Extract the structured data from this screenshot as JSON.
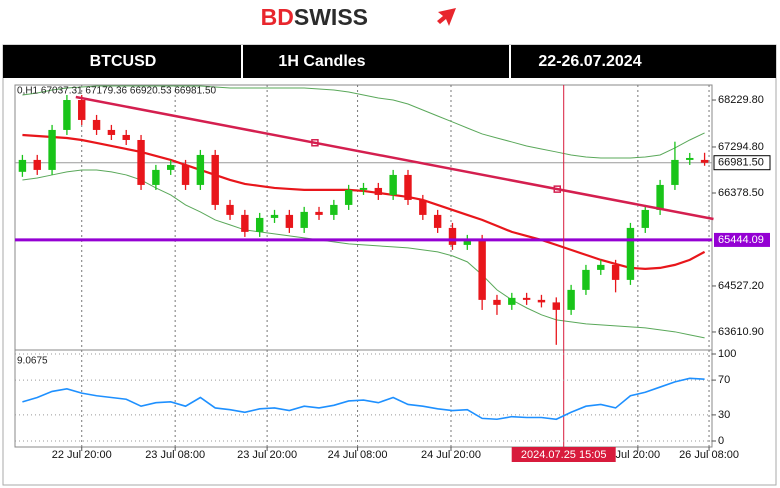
{
  "logo": {
    "bd": "BD",
    "swiss": "SWISS"
  },
  "header": [
    "BTCUSD",
    "1H Candles",
    "22-26.07.2024"
  ],
  "chart_data": [
    {
      "type": "candlestick",
      "info": "0,H1  67037.31  67179.36  66920.53  66981.50",
      "open": [
        66800,
        67037,
        66838,
        67634,
        68230,
        67833,
        67634,
        67534,
        67434,
        66539,
        66838,
        66937,
        66539,
        67136,
        66141,
        65942,
        65604,
        65882,
        65942,
        65683,
        66002,
        65942,
        66141,
        66440,
        66479,
        66340,
        66738,
        66240,
        65942,
        65683,
        65345,
        65444,
        64250,
        64151,
        64290,
        64250,
        64200,
        64051,
        64449,
        64847,
        64947,
        64648,
        65683,
        66041,
        66539,
        67037,
        67037.31
      ],
      "high": [
        67137,
        67137,
        67734,
        68330,
        68330,
        67933,
        67734,
        67634,
        67534,
        66938,
        67037,
        67037,
        67236,
        67236,
        66241,
        66042,
        65982,
        66042,
        66042,
        66102,
        66102,
        66241,
        66540,
        66579,
        66579,
        66838,
        66838,
        66340,
        66042,
        65783,
        65544,
        65544,
        64350,
        64390,
        64390,
        64350,
        64300,
        64549,
        64947,
        65047,
        65047,
        65783,
        66141,
        66639,
        67400,
        67176,
        67179.36
      ],
      "low": [
        66700,
        66738,
        66738,
        67534,
        67733,
        67534,
        67434,
        67334,
        66439,
        66439,
        66738,
        66439,
        66439,
        66041,
        65842,
        65504,
        65504,
        65782,
        65583,
        65583,
        65842,
        65842,
        66041,
        66340,
        66240,
        66240,
        66140,
        65842,
        65583,
        65245,
        65245,
        64050,
        63951,
        64051,
        64150,
        64100,
        63355,
        63951,
        64349,
        64747,
        64400,
        64548,
        65583,
        65941,
        66439,
        66937,
        66920.53
      ],
      "close": [
        67037,
        66838,
        67634,
        68230,
        67833,
        67634,
        67534,
        67434,
        66539,
        66838,
        66937,
        66539,
        67136,
        66141,
        65942,
        65604,
        65882,
        65942,
        65683,
        66002,
        65942,
        66141,
        66440,
        66479,
        66340,
        66738,
        66240,
        65942,
        65683,
        65345,
        65444,
        64250,
        64151,
        64290,
        64250,
        64200,
        64051,
        64449,
        64847,
        64947,
        64648,
        65683,
        66041,
        66539,
        67037,
        67076,
        66981.5
      ],
      "up_color": "#19c419",
      "down_color": "#e8161b",
      "ma": {
        "color": "#e8161b",
        "values": [
          67534,
          67514,
          67494,
          67474,
          67434,
          67375,
          67315,
          67255,
          67196,
          67116,
          67037,
          66937,
          66838,
          66738,
          66639,
          66559,
          66519,
          66479,
          66459,
          66440,
          66440,
          66440,
          66440,
          66420,
          66380,
          66340,
          66300,
          66240,
          66141,
          66041,
          65942,
          65843,
          65723,
          65604,
          65524,
          65444,
          65345,
          65246,
          65146,
          65047,
          64967,
          64887,
          64867,
          64887,
          64947,
          65047,
          65206
        ]
      },
      "bands": {
        "color": "#5aa85a",
        "upper": [
          68330,
          68370,
          68429,
          68469,
          68489,
          68509,
          68509,
          68509,
          68509,
          68509,
          68509,
          68509,
          68509,
          68489,
          68469,
          68469,
          68469,
          68469,
          68469,
          68469,
          68449,
          68429,
          68390,
          68330,
          68270,
          68230,
          68151,
          68031,
          67912,
          67793,
          67673,
          67554,
          67474,
          67395,
          67315,
          67255,
          67196,
          67136,
          67096,
          67076,
          67076,
          67076,
          67096,
          67136,
          67275,
          67434,
          67574
        ],
        "lower": [
          66638,
          66678,
          66738,
          66798,
          66837,
          66837,
          66798,
          66738,
          66638,
          66479,
          66340,
          66141,
          66002,
          65842,
          65743,
          65643,
          65604,
          65564,
          65524,
          65484,
          65444,
          65405,
          65365,
          65345,
          65325,
          65305,
          65285,
          65245,
          65206,
          65126,
          65007,
          64748,
          64449,
          64250,
          64091,
          63952,
          63852,
          63813,
          63773,
          63753,
          63733,
          63713,
          63693,
          63653,
          63614,
          63554,
          63494
        ]
      },
      "trendline": {
        "x": [
          3.6,
          46.6
        ],
        "values": [
          68290,
          65860
        ],
        "color": "#d41f4f"
      },
      "levels": [
        {
          "value": 65444.09,
          "color": "#9400d3"
        }
      ],
      "current_price": {
        "value": 66981.5,
        "label": "66981.50"
      },
      "cursor": {
        "x": 36.5,
        "label": "2024.07.25 15:05",
        "color": "#d81b3c"
      },
      "xlim": [
        -0.5,
        46.5
      ],
      "xticks": [
        {
          "value": 4,
          "label": "22 Jul 20:00"
        },
        {
          "value": 10.3,
          "label": "23 Jul 08:00"
        },
        {
          "value": 16.5,
          "label": "23 Jul 20:00"
        },
        {
          "value": 22.6,
          "label": "24 Jul 08:00"
        },
        {
          "value": 28.9,
          "label": "24 Jul 20:00"
        },
        {
          "value": 41.5,
          "label": "Jul 20:00"
        },
        {
          "value": 46.3,
          "label": "26 Jul 08:00"
        }
      ],
      "ylim": [
        63252,
        68529
      ],
      "yticks": [
        {
          "value": 63610.9,
          "label": "63610.90"
        },
        {
          "value": 64527.2,
          "label": "64527.20"
        },
        {
          "value": 66378.5,
          "label": "66378.50"
        },
        {
          "value": 67294.8,
          "label": "67294.80"
        },
        {
          "value": 68229.8,
          "label": "68229.80"
        }
      ]
    },
    {
      "type": "line",
      "label": "9.0675",
      "values": [
        45,
        50,
        57,
        60,
        55,
        52,
        50,
        48,
        40,
        44,
        45,
        40,
        50,
        38,
        36,
        33,
        37,
        38,
        35,
        40,
        38,
        41,
        46,
        47,
        44,
        50,
        42,
        40,
        37,
        35,
        36,
        26,
        25,
        28,
        27,
        27,
        25,
        33,
        40,
        42,
        38,
        52,
        56,
        62,
        68,
        72,
        71
      ],
      "color": "#1e90ff",
      "xlim": [
        -0.5,
        46.5
      ],
      "ylim": [
        0,
        100
      ],
      "yticks": [
        0,
        30,
        70,
        100
      ]
    }
  ]
}
